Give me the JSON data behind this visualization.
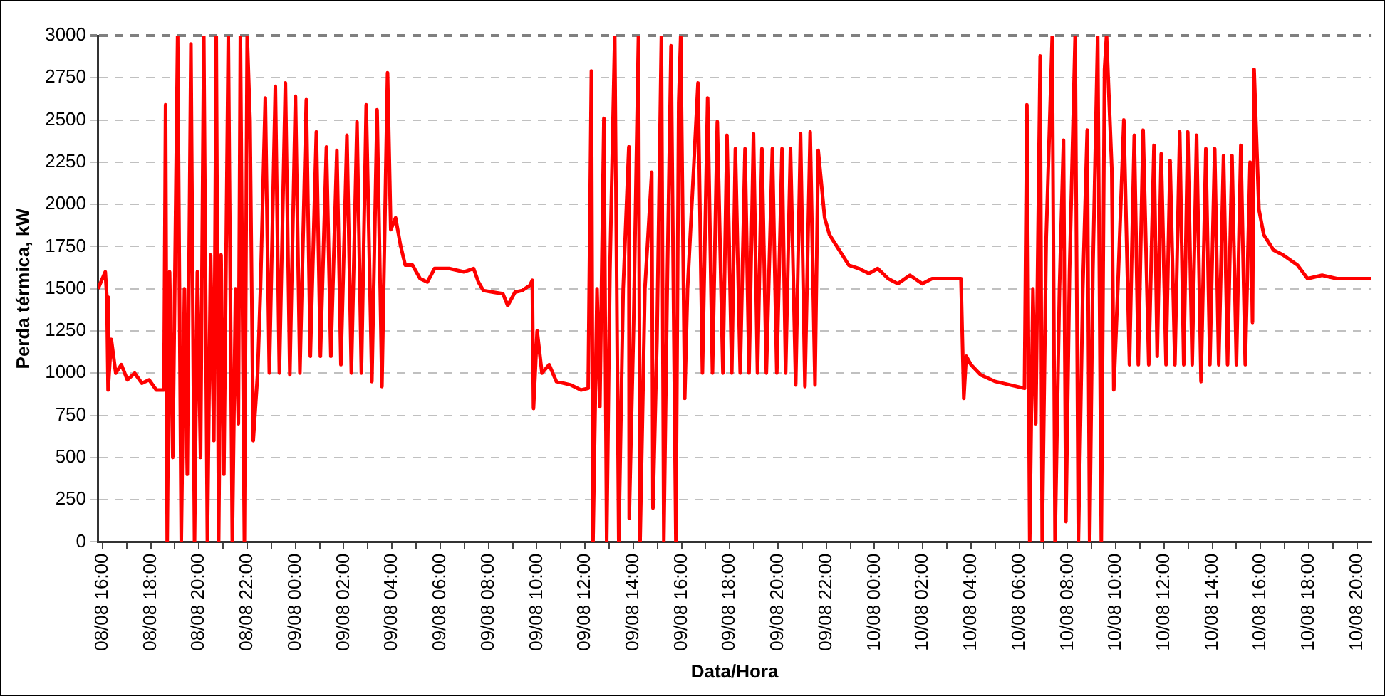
{
  "chart_data": {
    "type": "line",
    "xlabel": "Data/Hora",
    "ylabel": "Perda térmica, kW",
    "legend": false,
    "grid": "y",
    "marker": "none",
    "line_style": "solid",
    "xlim": [
      "--08-08T15:48",
      "--08-10T20:36"
    ],
    "xticks": [
      {
        "value": "--08-08T16:00",
        "label": "08/08 16:00"
      },
      {
        "value": "--08-08T17:00",
        "label": null
      },
      {
        "value": "--08-08T18:00",
        "label": "08/08 18:00"
      },
      {
        "value": "--08-08T19:00",
        "label": null
      },
      {
        "value": "--08-08T20:00",
        "label": "08/08 20:00"
      },
      {
        "value": "--08-08T21:00",
        "label": null
      },
      {
        "value": "--08-08T22:00",
        "label": "08/08 22:00"
      },
      {
        "value": "--08-08T23:00",
        "label": null
      },
      {
        "value": "--08-09T00:00",
        "label": "09/08 00:00"
      },
      {
        "value": "--08-09T01:00",
        "label": null
      },
      {
        "value": "--08-09T02:00",
        "label": "09/08 02:00"
      },
      {
        "value": "--08-09T03:00",
        "label": null
      },
      {
        "value": "--08-09T04:00",
        "label": "09/08 04:00"
      },
      {
        "value": "--08-09T05:00",
        "label": null
      },
      {
        "value": "--08-09T06:00",
        "label": "09/08 06:00"
      },
      {
        "value": "--08-09T07:00",
        "label": null
      },
      {
        "value": "--08-09T08:00",
        "label": "09/08 08:00"
      },
      {
        "value": "--08-09T09:00",
        "label": null
      },
      {
        "value": "--08-09T10:00",
        "label": "09/08 10:00"
      },
      {
        "value": "--08-09T11:00",
        "label": null
      },
      {
        "value": "--08-09T12:00",
        "label": "09/08 12:00"
      },
      {
        "value": "--08-09T13:00",
        "label": null
      },
      {
        "value": "--08-09T14:00",
        "label": "09/08 14:00"
      },
      {
        "value": "--08-09T15:00",
        "label": null
      },
      {
        "value": "--08-09T16:00",
        "label": "09/08 16:00"
      },
      {
        "value": "--08-09T17:00",
        "label": null
      },
      {
        "value": "--08-09T18:00",
        "label": "09/08 18:00"
      },
      {
        "value": "--08-09T19:00",
        "label": null
      },
      {
        "value": "--08-09T20:00",
        "label": "09/08 20:00"
      },
      {
        "value": "--08-09T21:00",
        "label": null
      },
      {
        "value": "--08-09T22:00",
        "label": "09/08 22:00"
      },
      {
        "value": "--08-09T23:00",
        "label": null
      },
      {
        "value": "--08-10T00:00",
        "label": "10/08 00:00"
      },
      {
        "value": "--08-10T01:00",
        "label": null
      },
      {
        "value": "--08-10T02:00",
        "label": "10/08 02:00"
      },
      {
        "value": "--08-10T03:00",
        "label": null
      },
      {
        "value": "--08-10T04:00",
        "label": "10/08 04:00"
      },
      {
        "value": "--08-10T05:00",
        "label": null
      },
      {
        "value": "--08-10T06:00",
        "label": "10/08 06:00"
      },
      {
        "value": "--08-10T07:00",
        "label": null
      },
      {
        "value": "--08-10T08:00",
        "label": "10/08 08:00"
      },
      {
        "value": "--08-10T09:00",
        "label": null
      },
      {
        "value": "--08-10T10:00",
        "label": "10/08 10:00"
      },
      {
        "value": "--08-10T11:00",
        "label": null
      },
      {
        "value": "--08-10T12:00",
        "label": "10/08 12:00"
      },
      {
        "value": "--08-10T13:00",
        "label": null
      },
      {
        "value": "--08-10T14:00",
        "label": "10/08 14:00"
      },
      {
        "value": "--08-10T15:00",
        "label": null
      },
      {
        "value": "--08-10T16:00",
        "label": "10/08 16:00"
      },
      {
        "value": "--08-10T17:00",
        "label": null
      },
      {
        "value": "--08-10T18:00",
        "label": "10/08 18:00"
      },
      {
        "value": "--08-10T19:00",
        "label": null
      },
      {
        "value": "--08-10T20:00",
        "label": "10/08 20:00"
      }
    ],
    "ylim": [
      0,
      3000
    ],
    "yticks": [
      0,
      250,
      500,
      750,
      1000,
      1250,
      1500,
      1750,
      2000,
      2250,
      2500,
      2750,
      3000
    ],
    "series": [
      {
        "color": "#ff0000",
        "x": [
          "--08-08T15:49",
          "--08-08T16:07",
          "--08-08T16:11",
          "--08-08T16:14",
          "--08-08T16:22",
          "--08-08T16:33",
          "--08-08T16:47",
          "--08-08T17:02",
          "--08-08T17:20",
          "--08-08T17:38",
          "--08-08T17:56",
          "--08-08T18:14",
          "--08-08T18:33",
          "--08-08T18:37",
          "--08-08T18:41",
          "--08-08T18:47",
          "--08-08T18:55",
          "--08-08T19:07",
          "--08-08T19:16",
          "--08-08T19:24",
          "--08-08T19:31",
          "--08-08T19:40",
          "--08-08T19:49",
          "--08-08T19:56",
          "--08-08T20:04",
          "--08-08T20:12",
          "--08-08T20:21",
          "--08-08T20:29",
          "--08-08T20:37",
          "--08-08T20:43",
          "--08-08T20:49",
          "--08-08T20:55",
          "--08-08T21:02",
          "--08-08T21:13",
          "--08-08T21:23",
          "--08-08T21:31",
          "--08-08T21:38",
          "--08-08T21:43",
          "--08-08T21:53",
          "--08-08T22:00",
          "--08-08T22:07",
          "--08-08T22:15",
          "--08-08T22:26",
          "--08-08T22:33",
          "--08-08T22:45",
          "--08-08T22:55",
          "--08-08T23:10",
          "--08-08T23:20",
          "--08-08T23:35",
          "--08-08T23:46",
          "--08-09T00:00",
          "--08-09T00:11",
          "--08-09T00:27",
          "--08-09T00:37",
          "--08-09T00:52",
          "--08-09T01:02",
          "--08-09T01:17",
          "--08-09T01:28",
          "--08-09T01:43",
          "--08-09T01:53",
          "--08-09T02:08",
          "--08-09T02:19",
          "--08-09T02:33",
          "--08-09T02:44",
          "--08-09T02:56",
          "--08-09T03:10",
          "--08-09T03:23",
          "--08-09T03:35",
          "--08-09T03:49",
          "--08-09T03:57",
          "--08-09T04:09",
          "--08-09T04:21",
          "--08-09T04:33",
          "--08-09T04:51",
          "--08-09T05:10",
          "--08-09T05:28",
          "--08-09T05:46",
          "--08-09T06:22",
          "--08-09T06:59",
          "--08-09T07:23",
          "--08-09T07:35",
          "--08-09T07:47",
          "--08-09T08:11",
          "--08-09T08:36",
          "--08-09T08:48",
          "--08-09T09:06",
          "--08-09T09:24",
          "--08-09T09:43",
          "--08-09T09:49",
          "--08-09T09:52",
          "--08-09T10:01",
          "--08-09T10:13",
          "--08-09T10:31",
          "--08-09T10:49",
          "--08-09T11:25",
          "--08-09T11:50",
          "--08-09T12:08",
          "--08-09T12:16",
          "--08-09T12:20",
          "--08-09T12:30",
          "--08-09T12:37",
          "--08-09T12:47",
          "--08-09T12:54",
          "--08-09T13:02",
          "--08-09T13:14",
          "--08-09T13:24",
          "--08-09T13:35",
          "--08-09T13:49",
          "--08-09T13:50",
          "--08-09T14:01",
          "--08-09T14:13",
          "--08-09T14:17",
          "--08-09T14:29",
          "--08-09T14:46",
          "--08-09T14:49",
          "--08-09T14:59",
          "--08-09T15:10",
          "--08-09T15:16",
          "--08-09T15:25",
          "--08-09T15:34",
          "--08-09T15:46",
          "--08-09T15:53",
          "--08-09T15:58",
          "--08-09T16:08",
          "--08-09T16:15",
          "--08-09T16:41",
          "--08-09T16:52",
          "--08-09T17:05",
          "--08-09T17:17",
          "--08-09T17:29",
          "--08-09T17:43",
          "--08-09T17:53",
          "--08-09T18:05",
          "--08-09T18:14",
          "--08-09T18:26",
          "--08-09T18:38",
          "--08-09T18:48",
          "--08-09T18:59",
          "--08-09T19:09",
          "--08-09T19:20",
          "--08-09T19:31",
          "--08-09T19:46",
          "--08-09T19:57",
          "--08-09T20:10",
          "--08-09T20:19",
          "--08-09T20:31",
          "--08-09T20:44",
          "--08-09T20:56",
          "--08-09T21:07",
          "--08-09T21:20",
          "--08-09T21:32",
          "--08-09T21:40",
          "--08-09T21:56",
          "--08-09T22:08",
          "--08-09T22:32",
          "--08-09T22:56",
          "--08-09T23:21",
          "--08-09T23:46",
          "--08-10T00:08",
          "--08-10T00:34",
          "--08-10T00:58",
          "--08-10T01:28",
          "--08-10T01:59",
          "--08-10T02:23",
          "--08-10T02:59",
          "--08-10T03:35",
          "--08-10T03:42",
          "--08-10T03:48",
          "--08-10T04:00",
          "--08-10T04:24",
          "--08-10T05:01",
          "--08-10T05:37",
          "--08-10T06:13",
          "--08-10T06:19",
          "--08-10T06:26",
          "--08-10T06:34",
          "--08-10T06:41",
          "--08-10T06:52",
          "--08-10T06:57",
          "--08-10T07:07",
          "--08-10T07:22",
          "--08-10T07:29",
          "--08-10T07:40",
          "--08-10T07:50",
          "--08-10T07:56",
          "--08-10T08:05",
          "--08-10T08:19",
          "--08-10T08:27",
          "--08-10T08:38",
          "--08-10T08:49",
          "--08-10T08:55",
          "--08-10T09:03",
          "--08-10T09:15",
          "--08-10T09:24",
          "--08-10T09:32",
          "--08-10T09:37",
          "--08-10T09:50",
          "--08-10T09:55",
          "--08-10T10:05",
          "--08-10T10:20",
          "--08-10T10:34",
          "--08-10T10:46",
          "--08-10T10:56",
          "--08-10T11:08",
          "--08-10T11:22",
          "--08-10T11:35",
          "--08-10T11:43",
          "--08-10T11:53",
          "--08-10T12:05",
          "--08-10T12:15",
          "--08-10T12:27",
          "--08-10T12:39",
          "--08-10T12:49",
          "--08-10T12:59",
          "--08-10T13:10",
          "--08-10T13:21",
          "--08-10T13:32",
          "--08-10T13:44",
          "--08-10T13:54",
          "--08-10T14:06",
          "--08-10T14:16",
          "--08-10T14:28",
          "--08-10T14:38",
          "--08-10T14:49",
          "--08-10T15:00",
          "--08-10T15:11",
          "--08-10T15:22",
          "--08-10T15:34",
          "--08-10T15:40",
          "--08-10T15:44",
          "--08-10T15:56",
          "--08-10T16:08",
          "--08-10T16:32",
          "--08-10T16:56",
          "--08-10T17:32",
          "--08-10T17:57",
          "--08-10T18:33",
          "--08-10T19:10",
          "--08-10T19:46",
          "--08-10T20:35"
        ],
        "values": [
          1500,
          1600,
          1450,
          900,
          1200,
          1000,
          1050,
          960,
          1000,
          940,
          960,
          900,
          900,
          2590,
          0,
          1600,
          500,
          3000,
          0,
          1500,
          400,
          2950,
          0,
          1600,
          500,
          3000,
          0,
          1700,
          600,
          3000,
          0,
          1700,
          400,
          3000,
          0,
          1500,
          700,
          3000,
          0,
          3000,
          2500,
          600,
          1000,
          1500,
          2630,
          1000,
          2700,
          1000,
          2720,
          990,
          2640,
          1000,
          2620,
          1100,
          2430,
          1100,
          2340,
          1100,
          2320,
          1050,
          2410,
          1000,
          2490,
          1000,
          2590,
          950,
          2560,
          920,
          2780,
          1850,
          1920,
          1760,
          1640,
          1640,
          1560,
          1540,
          1620,
          1620,
          1600,
          1620,
          1540,
          1490,
          1480,
          1470,
          1400,
          1480,
          1490,
          1520,
          1550,
          790,
          1250,
          1000,
          1050,
          950,
          930,
          900,
          910,
          2790,
          0,
          1500,
          800,
          2510,
          0,
          1600,
          3000,
          0,
          1500,
          2340,
          140,
          1300,
          3000,
          0,
          1500,
          2190,
          200,
          1200,
          3000,
          0,
          1600,
          2940,
          0,
          2600,
          3000,
          850,
          1500,
          2720,
          1000,
          2630,
          1000,
          2490,
          1000,
          2410,
          1000,
          2330,
          1000,
          2330,
          1000,
          2420,
          1000,
          2330,
          1000,
          2330,
          1000,
          2330,
          1000,
          2330,
          930,
          2420,
          920,
          2430,
          930,
          2320,
          1920,
          1820,
          1730,
          1640,
          1620,
          1590,
          1620,
          1560,
          1530,
          1580,
          1530,
          1560,
          1560,
          1560,
          850,
          1100,
          1050,
          990,
          950,
          930,
          910,
          2590,
          0,
          1500,
          700,
          2880,
          0,
          1800,
          3000,
          0,
          1500,
          2380,
          120,
          1600,
          3000,
          0,
          1500,
          2440,
          0,
          1600,
          3000,
          0,
          2800,
          3000,
          2220,
          900,
          1500,
          2500,
          1050,
          2410,
          1050,
          2440,
          1050,
          2350,
          1100,
          2300,
          1050,
          2260,
          1050,
          2430,
          1050,
          2430,
          1050,
          2410,
          950,
          2330,
          1050,
          2330,
          1050,
          2290,
          1050,
          2290,
          1050,
          2350,
          1050,
          2250,
          1300,
          2800,
          1970,
          1820,
          1730,
          1700,
          1640,
          1560,
          1580,
          1560,
          1560,
          1560
        ]
      }
    ]
  }
}
